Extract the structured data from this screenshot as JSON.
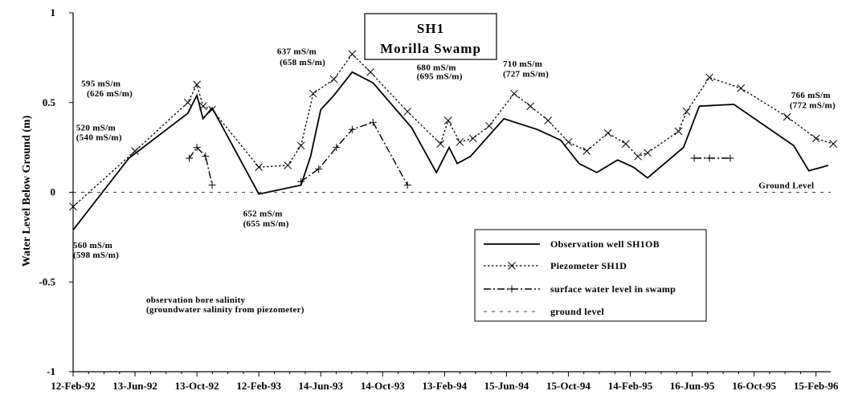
{
  "chart_data": {
    "type": "line",
    "title": "SH1",
    "subtitle": "Morilla Swamp",
    "xlabel": "",
    "ylabel": "Water Level Below Ground (m)",
    "ylim": [
      -1,
      1
    ],
    "yticks": [
      1,
      0.5,
      0,
      -0.5,
      -1
    ],
    "ytick_labels": [
      "1",
      "0.5",
      "0",
      "-0.5",
      "-1"
    ],
    "xlim": [
      "1992-02-12",
      "1996-03-15"
    ],
    "xticks": [
      "1992-02-12",
      "1992-06-13",
      "1992-10-13",
      "1993-02-12",
      "1993-06-14",
      "1993-10-14",
      "1994-02-13",
      "1994-06-15",
      "1994-10-15",
      "1995-02-14",
      "1995-06-16",
      "1995-10-16",
      "1996-02-15"
    ],
    "xtick_labels": [
      "12-Feb-92",
      "13-Jun-92",
      "13-Oct-92",
      "12-Feb-93",
      "14-Jun-93",
      "14-Oct-93",
      "13-Feb-94",
      "15-Jun-94",
      "15-Oct-94",
      "14-Feb-95",
      "16-Jun-95",
      "16-Oct-95",
      "15-Feb-96"
    ],
    "grid": false,
    "legend_position": "bottom-right",
    "series": [
      {
        "name": "Observation well SH1OB",
        "style": "solid",
        "marker": "none",
        "x": [
          "1992-02-12",
          "1992-06-01",
          "1992-09-25",
          "1992-10-13",
          "1992-10-25",
          "1992-11-12",
          "1993-02-12",
          "1993-05-06",
          "1993-05-25",
          "1993-06-14",
          "1993-07-10",
          "1993-08-15",
          "1993-09-25",
          "1993-12-10",
          "1994-01-28",
          "1994-02-22",
          "1994-03-10",
          "1994-04-05",
          "1994-06-10",
          "1994-08-15",
          "1994-09-30",
          "1994-11-05",
          "1994-12-10",
          "1995-01-20",
          "1995-02-20",
          "1995-03-20",
          "1995-05-30",
          "1995-06-30",
          "1995-09-06",
          "1996-01-02",
          "1996-02-01",
          "1996-03-10"
        ],
        "y": [
          -0.21,
          0.19,
          0.44,
          0.54,
          0.41,
          0.47,
          -0.01,
          0.04,
          0.2,
          0.46,
          0.54,
          0.67,
          0.61,
          0.36,
          0.11,
          0.25,
          0.16,
          0.2,
          0.41,
          0.35,
          0.29,
          0.16,
          0.11,
          0.18,
          0.14,
          0.08,
          0.25,
          0.48,
          0.49,
          0.26,
          0.12,
          0.15
        ]
      },
      {
        "name": "Piezometer SH1D",
        "style": "dotted",
        "marker": "x",
        "x": [
          "1992-02-12",
          "1992-06-13",
          "1992-09-25",
          "1992-10-13",
          "1992-10-25",
          "1992-11-12",
          "1993-02-12",
          "1993-04-10",
          "1993-05-06",
          "1993-05-30",
          "1993-07-10",
          "1993-08-15",
          "1993-09-20",
          "1993-12-02",
          "1994-02-05",
          "1994-02-20",
          "1994-03-15",
          "1994-04-10",
          "1994-05-12",
          "1994-06-30",
          "1994-08-01",
          "1994-09-05",
          "1994-10-15",
          "1994-11-20",
          "1995-01-01",
          "1995-02-05",
          "1995-03-01",
          "1995-03-20",
          "1995-05-20",
          "1995-06-05",
          "1995-07-20",
          "1995-09-20",
          "1995-12-20",
          "1996-02-15",
          "1996-03-20"
        ],
        "y": [
          -0.08,
          0.23,
          0.5,
          0.6,
          0.48,
          0.46,
          0.14,
          0.15,
          0.26,
          0.55,
          0.63,
          0.77,
          0.67,
          0.45,
          0.27,
          0.4,
          0.28,
          0.3,
          0.37,
          0.55,
          0.48,
          0.4,
          0.28,
          0.23,
          0.33,
          0.27,
          0.2,
          0.22,
          0.34,
          0.45,
          0.64,
          0.58,
          0.42,
          0.3,
          0.27
        ]
      },
      {
        "name": "surface water level in swamp",
        "style": "dashdot",
        "marker": "plus",
        "segments": [
          {
            "x": [
              "1992-09-28",
              "1992-10-13",
              "1992-10-30",
              "1992-11-12"
            ],
            "y": [
              0.19,
              0.25,
              0.2,
              0.04
            ]
          },
          {
            "x": [
              "1993-05-06",
              "1993-06-10",
              "1993-07-15",
              "1993-08-15",
              "1993-09-25",
              "1993-12-02"
            ],
            "y": [
              0.06,
              0.13,
              0.25,
              0.35,
              0.39,
              0.04
            ]
          },
          {
            "x": [
              "1995-06-20",
              "1995-07-20",
              "1995-08-30"
            ],
            "y": [
              0.19,
              0.19,
              0.19
            ]
          }
        ]
      },
      {
        "name": "ground level",
        "style": "dashed-thin",
        "marker": "none",
        "x": [
          "1992-02-12",
          "1996-03-15"
        ],
        "y": [
          0,
          0
        ]
      }
    ],
    "annotations": [
      {
        "text": "595 mS/m",
        "x": "1992-02-28",
        "y": 0.59
      },
      {
        "text": "(626 mS/m)",
        "x": "1992-03-10",
        "y": 0.535
      },
      {
        "text": "520 mS/m",
        "x": "1992-02-18",
        "y": 0.345
      },
      {
        "text": "(540 mS/m)",
        "x": "1992-02-18",
        "y": 0.29
      },
      {
        "text": "560 mS/m",
        "x": "1992-02-12",
        "y": -0.31
      },
      {
        "text": "(598 mS/m)",
        "x": "1992-02-12",
        "y": -0.365
      },
      {
        "text": "637 mS/m",
        "x": "1993-03-20",
        "y": 0.77
      },
      {
        "text": "(658 mS/m)",
        "x": "1993-03-25",
        "y": 0.71
      },
      {
        "text": "652 mS/m",
        "x": "1993-01-12",
        "y": -0.135
      },
      {
        "text": "(655 mS/m)",
        "x": "1993-01-12",
        "y": -0.19
      },
      {
        "text": "680 mS/m",
        "x": "1993-12-20",
        "y": 0.68
      },
      {
        "text": "(695 mS/m)",
        "x": "1993-12-20",
        "y": 0.63
      },
      {
        "text": "710 mS/m",
        "x": "1994-06-08",
        "y": 0.7
      },
      {
        "text": "(727 mS/m)",
        "x": "1994-06-08",
        "y": 0.645
      },
      {
        "text": "766 mS/m",
        "x": "1995-12-28",
        "y": 0.525
      },
      {
        "text": "(772 mS/m)",
        "x": "1995-12-25",
        "y": 0.47
      },
      {
        "text": "Ground Level",
        "x": "1995-10-25",
        "y": 0.022
      },
      {
        "text": "observation bore salinity",
        "x": "1992-07-05",
        "y": -0.615
      },
      {
        "text": "(groundwater salinity from piezometer)",
        "x": "1992-07-05",
        "y": -0.67
      }
    ]
  }
}
